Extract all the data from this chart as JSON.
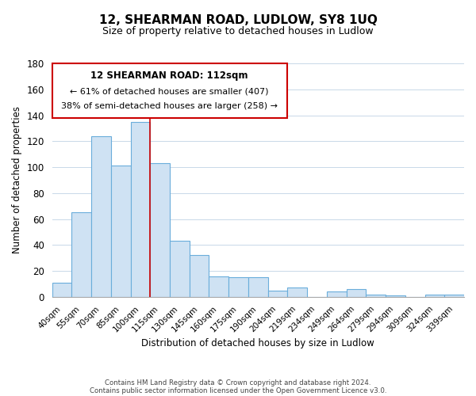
{
  "title": "12, SHEARMAN ROAD, LUDLOW, SY8 1UQ",
  "subtitle": "Size of property relative to detached houses in Ludlow",
  "xlabel": "Distribution of detached houses by size in Ludlow",
  "ylabel": "Number of detached properties",
  "bar_labels": [
    "40sqm",
    "55sqm",
    "70sqm",
    "85sqm",
    "100sqm",
    "115sqm",
    "130sqm",
    "145sqm",
    "160sqm",
    "175sqm",
    "190sqm",
    "204sqm",
    "219sqm",
    "234sqm",
    "249sqm",
    "264sqm",
    "279sqm",
    "294sqm",
    "309sqm",
    "324sqm",
    "339sqm"
  ],
  "bar_values": [
    11,
    65,
    124,
    101,
    135,
    103,
    43,
    32,
    16,
    15,
    15,
    5,
    7,
    0,
    4,
    6,
    2,
    1,
    0,
    2,
    2
  ],
  "bar_color": "#cfe2f3",
  "bar_edge_color": "#6aaddb",
  "vline_x": 4.5,
  "vline_color": "#cc0000",
  "ylim": [
    0,
    180
  ],
  "yticks": [
    0,
    20,
    40,
    60,
    80,
    100,
    120,
    140,
    160,
    180
  ],
  "annotation_title": "12 SHEARMAN ROAD: 112sqm",
  "annotation_line1": "← 61% of detached houses are smaller (407)",
  "annotation_line2": "38% of semi-detached houses are larger (258) →",
  "footer1": "Contains HM Land Registry data © Crown copyright and database right 2024.",
  "footer2": "Contains public sector information licensed under the Open Government Licence v3.0."
}
